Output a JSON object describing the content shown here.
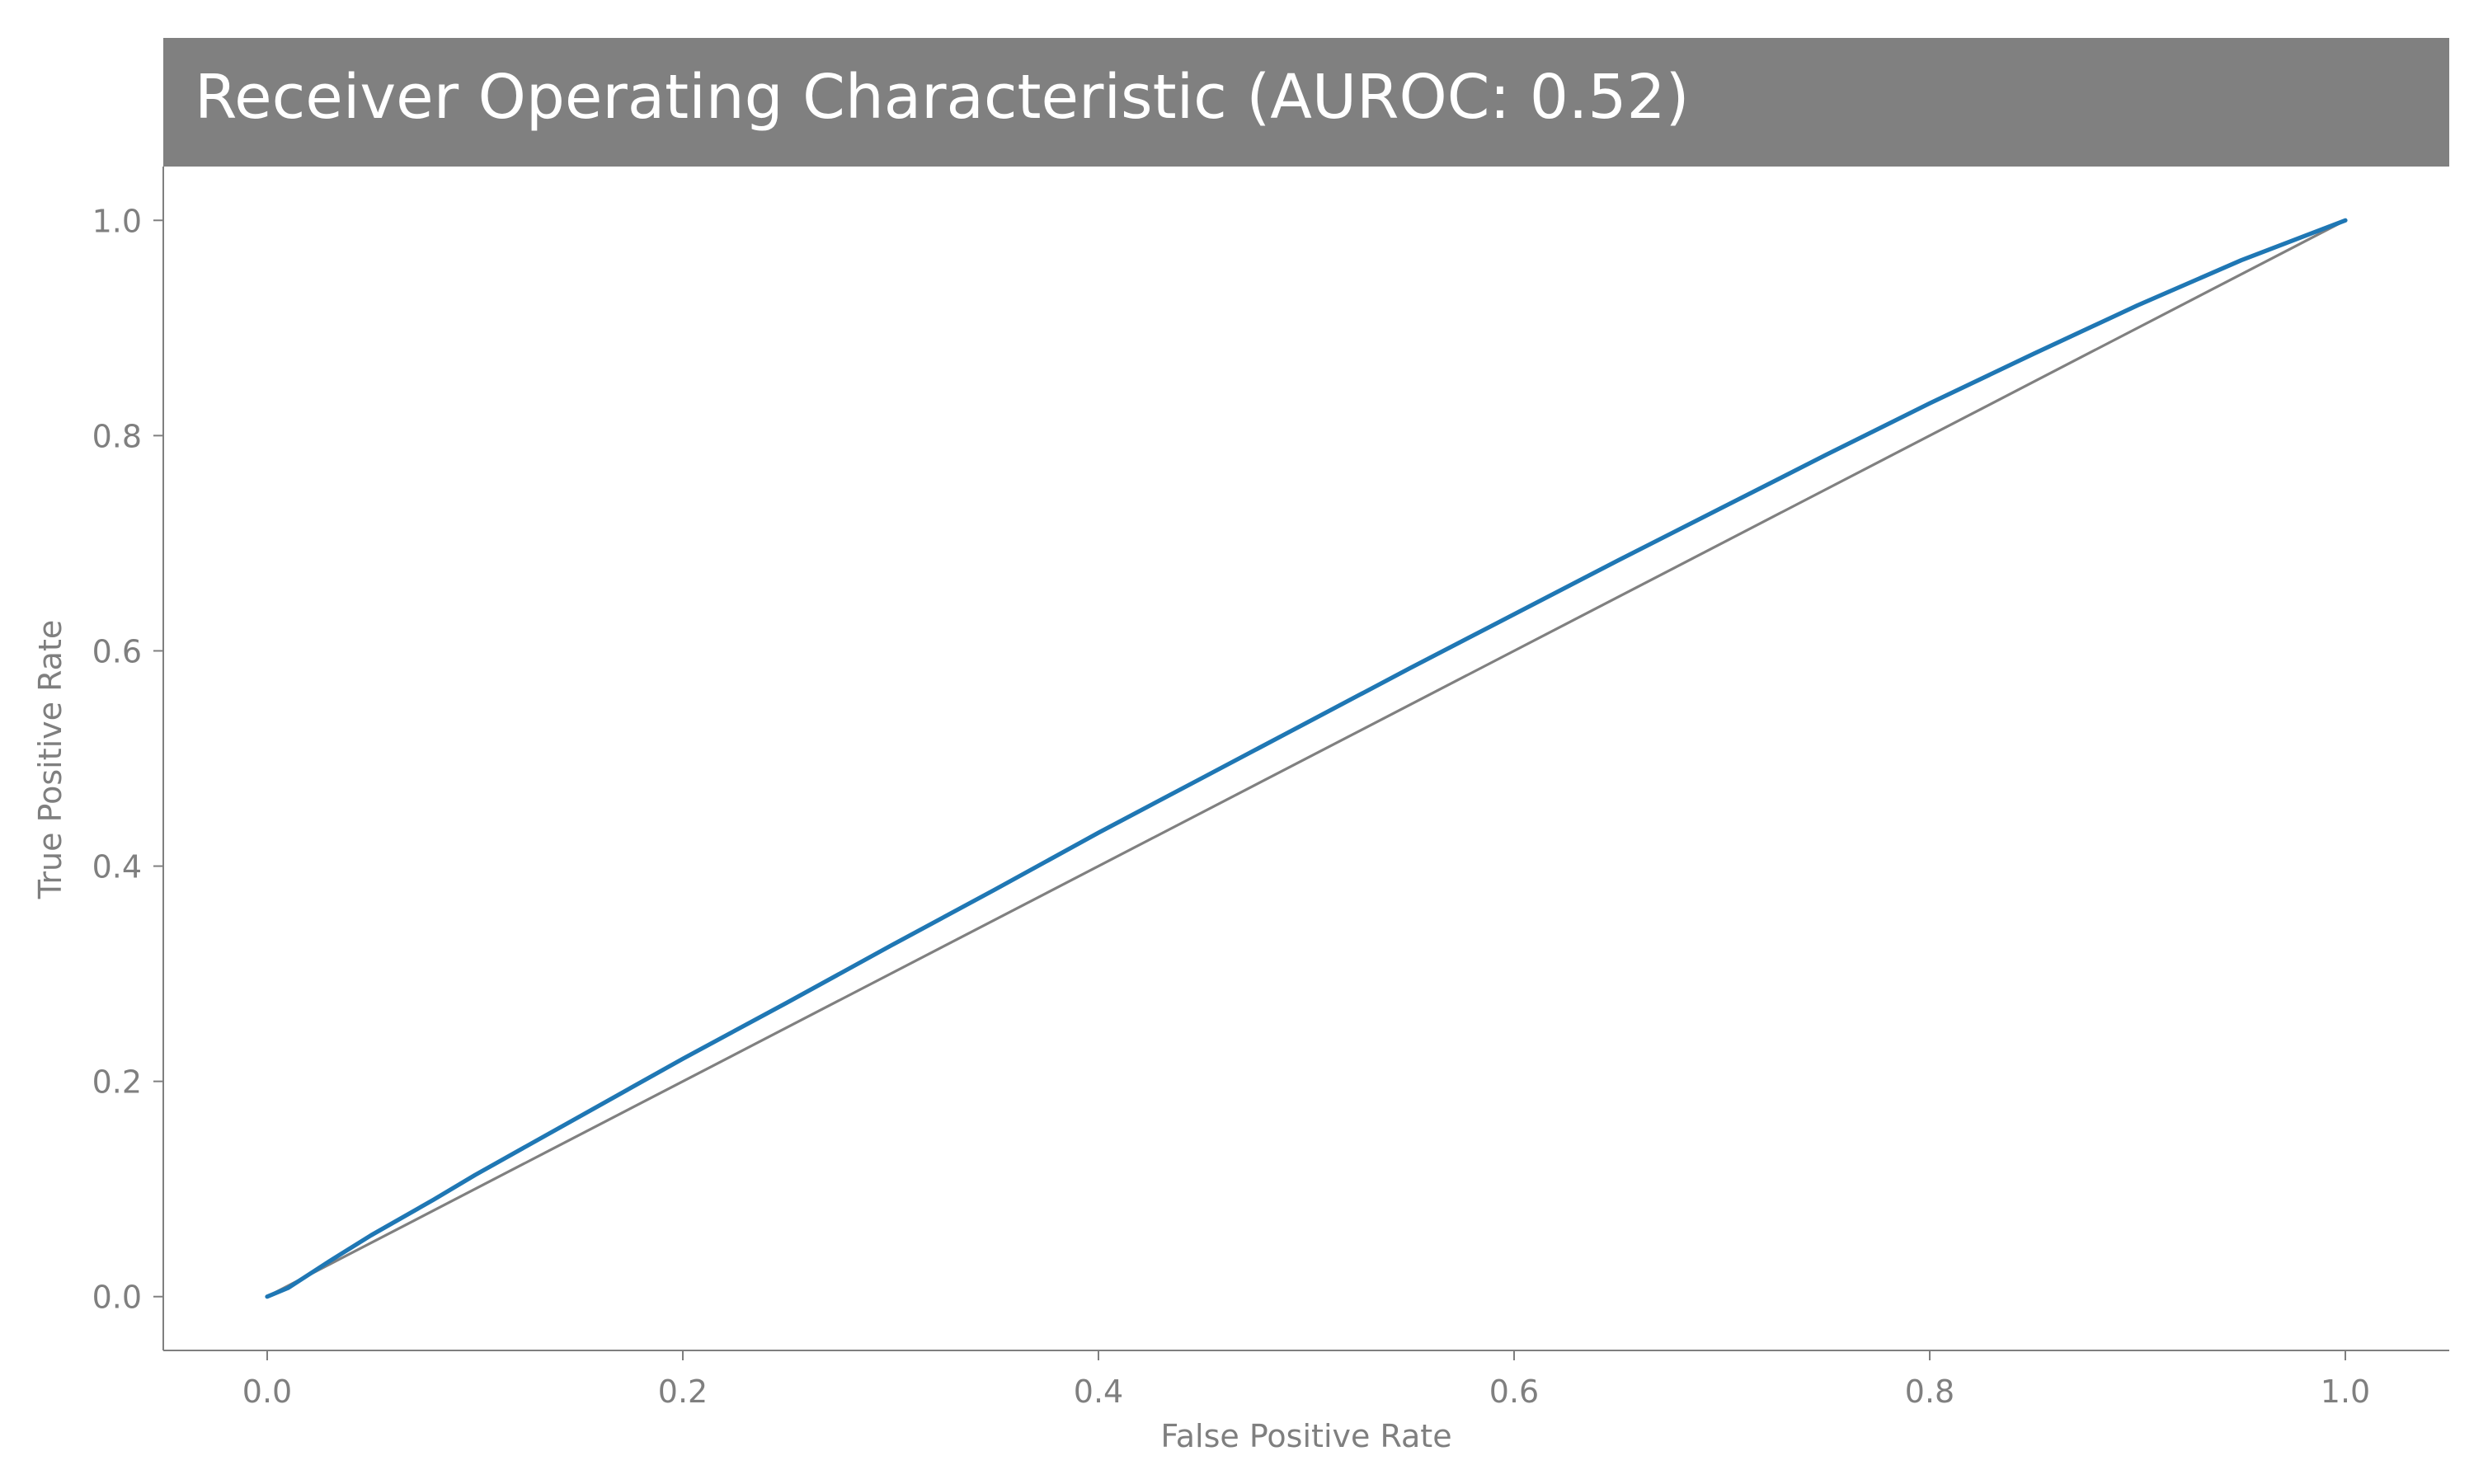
{
  "chart_data": {
    "type": "line",
    "title": "Receiver Operating Characteristic (AUROC: 0.52)",
    "xlabel": "False Positive Rate",
    "ylabel": "True Positive Rate",
    "xlim": [
      -0.05,
      1.05
    ],
    "ylim": [
      -0.05,
      1.05
    ],
    "x_ticks": [
      0.0,
      0.2,
      0.4,
      0.6,
      0.8,
      1.0
    ],
    "y_ticks": [
      0.0,
      0.2,
      0.4,
      0.6,
      0.8,
      1.0
    ],
    "x_tick_labels": [
      "0.0",
      "0.2",
      "0.4",
      "0.6",
      "0.8",
      "1.0"
    ],
    "y_tick_labels": [
      "0.0",
      "0.2",
      "0.4",
      "0.6",
      "0.8",
      "1.0"
    ],
    "grid": false,
    "legend": "none",
    "colors": {
      "title_bar": "#808080",
      "title_text": "#ffffff",
      "axis": "#7f7f7f",
      "roc_curve": "#1f77b4",
      "reference_line": "#808080"
    },
    "series": [
      {
        "x": [
          0.0,
          0.01,
          0.03,
          0.05,
          0.08,
          0.1,
          0.15,
          0.2,
          0.25,
          0.3,
          0.35,
          0.4,
          0.45,
          0.5,
          0.55,
          0.6,
          0.65,
          0.7,
          0.75,
          0.8,
          0.85,
          0.9,
          0.95,
          1.0
        ],
        "y": [
          0.0,
          0.008,
          0.033,
          0.057,
          0.09,
          0.113,
          0.167,
          0.221,
          0.273,
          0.326,
          0.378,
          0.431,
          0.482,
          0.533,
          0.584,
          0.634,
          0.684,
          0.733,
          0.782,
          0.83,
          0.876,
          0.921,
          0.963,
          1.0
        ]
      },
      {
        "x": [
          0.0,
          1.0
        ],
        "y": [
          0.0,
          1.0
        ]
      }
    ]
  }
}
